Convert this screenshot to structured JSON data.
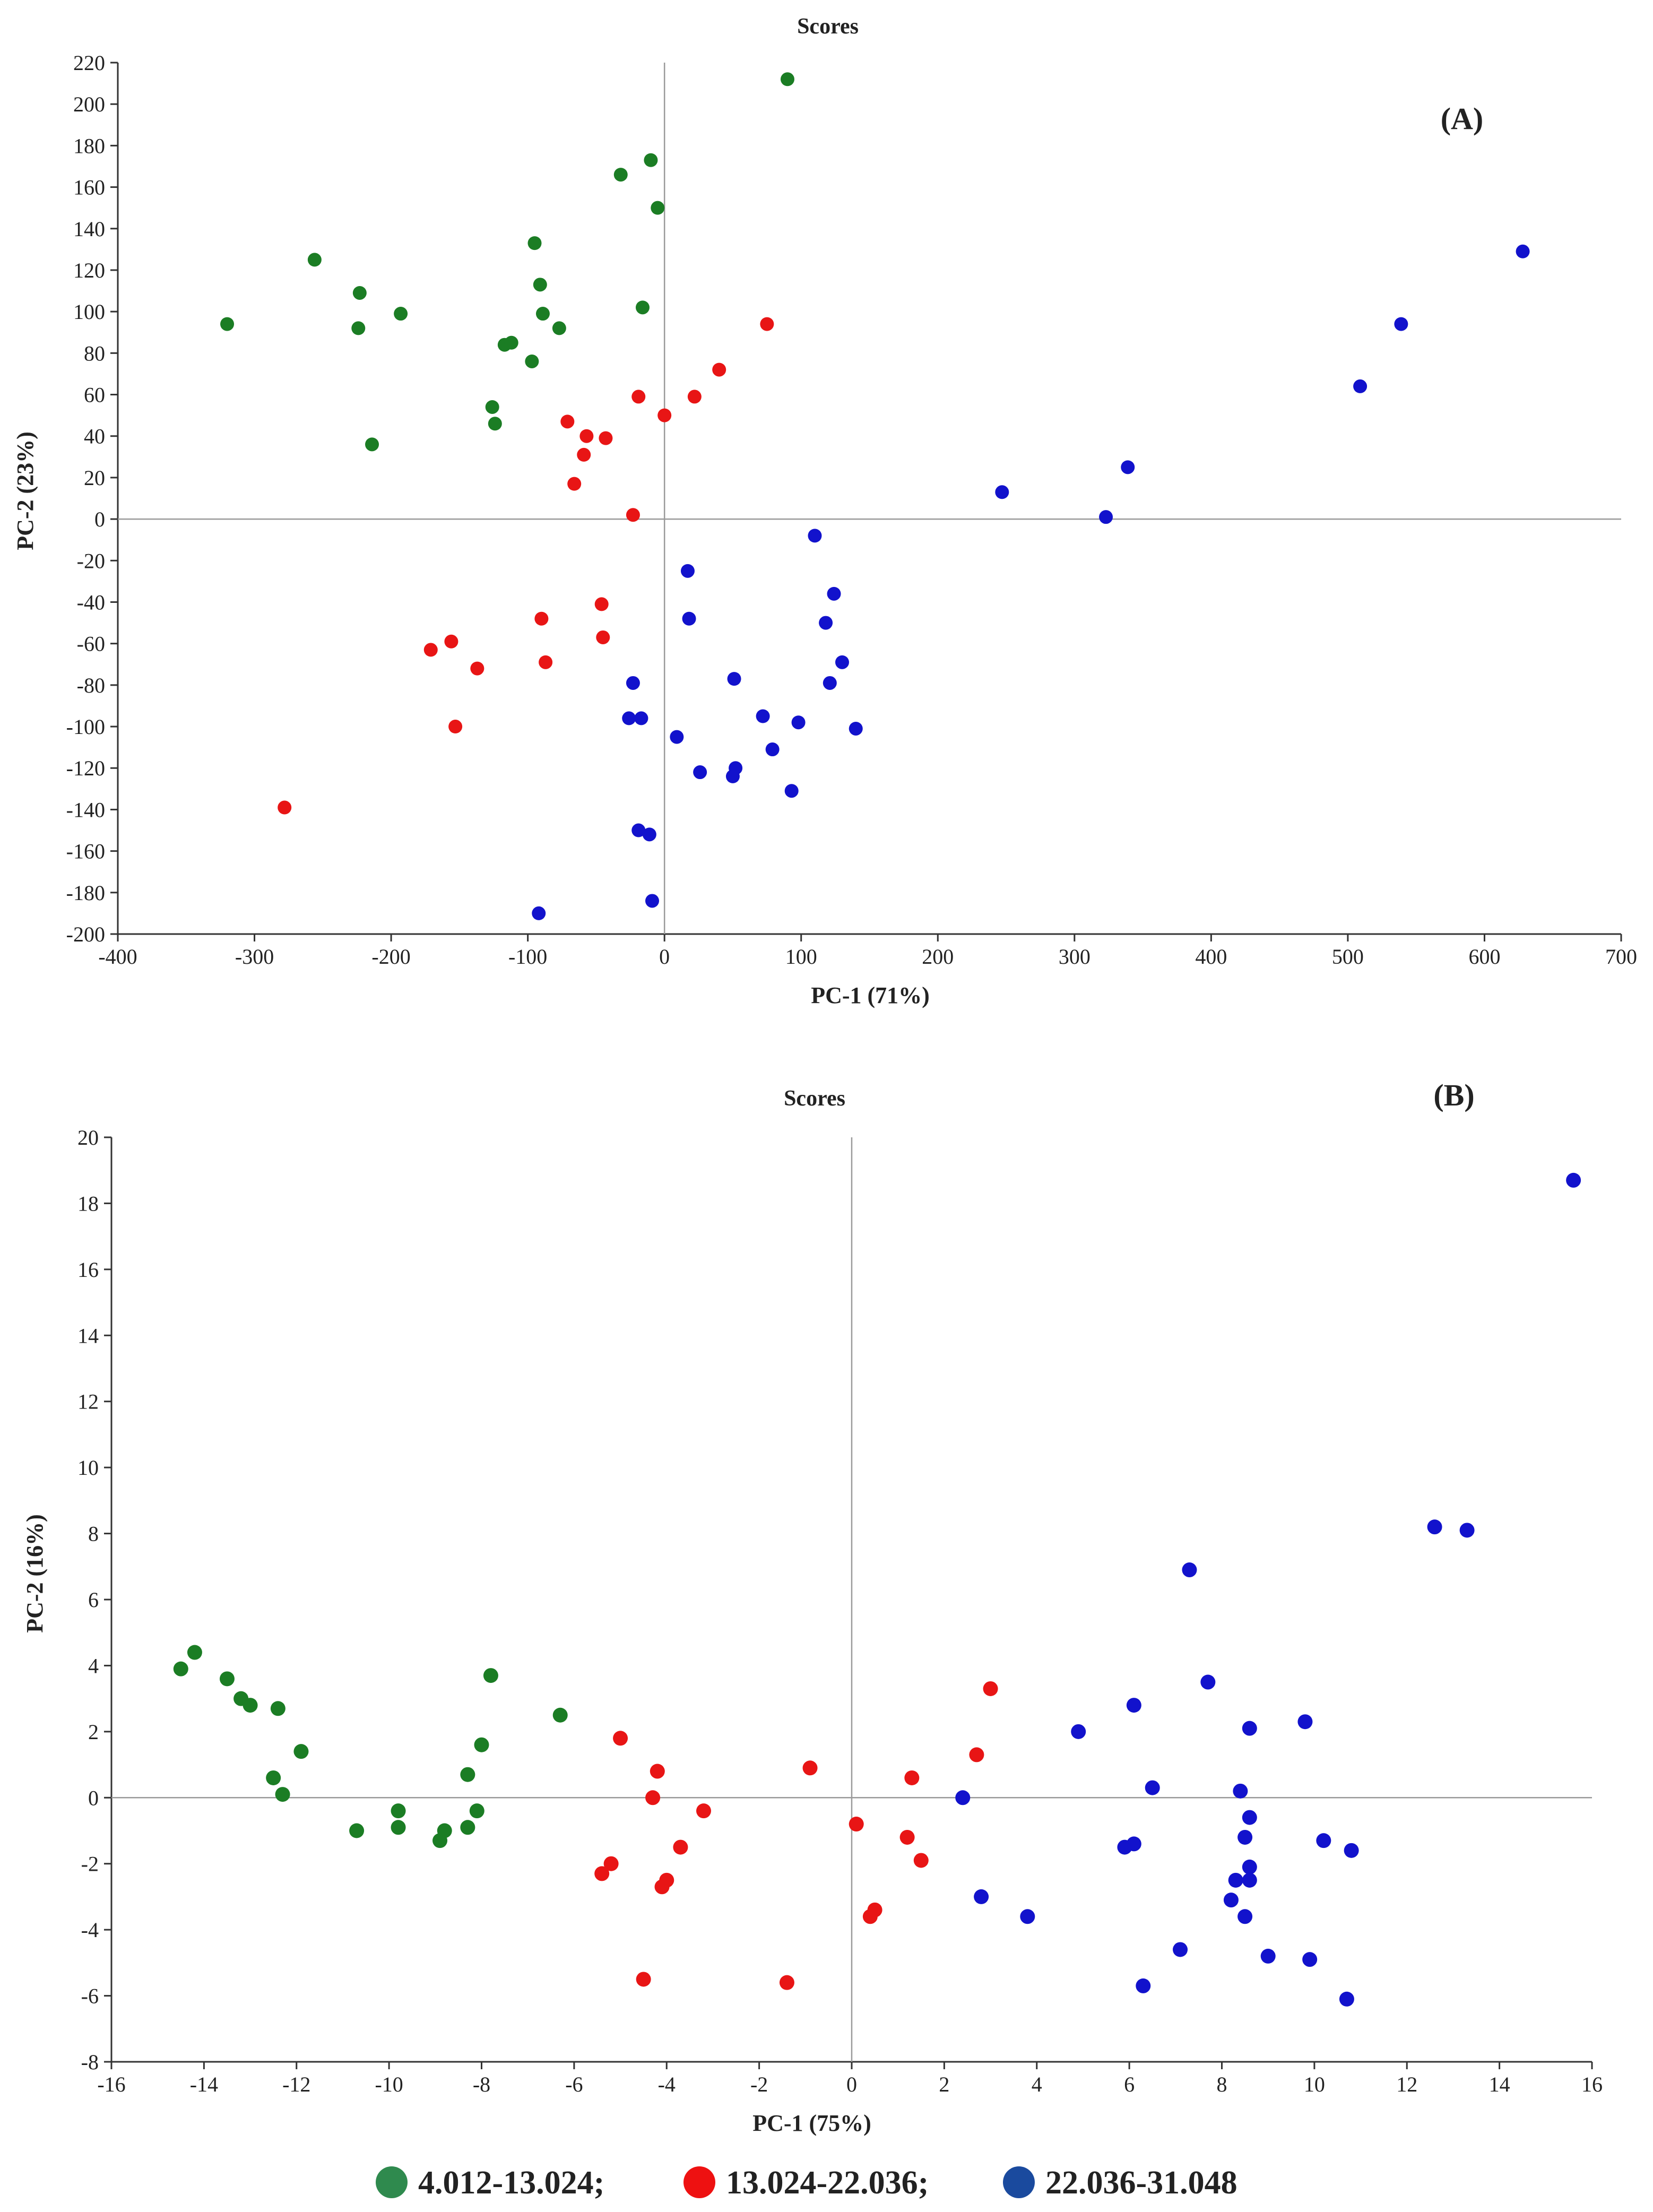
{
  "colors": {
    "group1": "#1b7d24",
    "group2": "#e81515",
    "group3": "#1212cc",
    "legend_group1": "#2f8a4e",
    "legend_group2": "#ee1111",
    "legend_group3": "#1a4a9e"
  },
  "legend": [
    {
      "label": "4.012-13.024;",
      "color_key": "legend_group1"
    },
    {
      "label": "13.024-22.036;",
      "color_key": "legend_group2"
    },
    {
      "label": "22.036-31.048",
      "color_key": "legend_group3"
    }
  ],
  "chart_data": [
    {
      "type": "scatter",
      "panel_label": "(A)",
      "title": "Scores",
      "xlabel": "PC-1 (71%)",
      "ylabel": "PC-2 (23%)",
      "xlim": [
        -400,
        700
      ],
      "ylim": [
        -200,
        220
      ],
      "xticks": [
        -400,
        -300,
        -200,
        -100,
        0,
        100,
        200,
        300,
        400,
        500,
        600,
        700
      ],
      "yticks": [
        -200,
        -180,
        -160,
        -140,
        -120,
        -100,
        -80,
        -60,
        -40,
        -20,
        0,
        20,
        40,
        60,
        80,
        100,
        120,
        140,
        160,
        180,
        200,
        220
      ],
      "series": [
        {
          "name": "4.012-13.024",
          "color_key": "group1",
          "points": [
            [
              90,
              212
            ],
            [
              -10,
              173
            ],
            [
              -32,
              166
            ],
            [
              -5,
              150
            ],
            [
              -95,
              133
            ],
            [
              -256,
              125
            ],
            [
              -223,
              109
            ],
            [
              -193,
              99
            ],
            [
              -91,
              113
            ],
            [
              -89,
              99
            ],
            [
              -320,
              94
            ],
            [
              -224,
              92
            ],
            [
              -77,
              92
            ],
            [
              -16,
              102
            ],
            [
              -117,
              84
            ],
            [
              -112,
              85
            ],
            [
              -97,
              76
            ],
            [
              -126,
              54
            ],
            [
              -124,
              46
            ],
            [
              -214,
              36
            ]
          ]
        },
        {
          "name": "13.024-22.036",
          "color_key": "group2",
          "points": [
            [
              75,
              94
            ],
            [
              40,
              72
            ],
            [
              22,
              59
            ],
            [
              -19,
              59
            ],
            [
              0,
              50
            ],
            [
              -71,
              47
            ],
            [
              -57,
              40
            ],
            [
              -43,
              39
            ],
            [
              -59,
              31
            ],
            [
              -66,
              17
            ],
            [
              -23,
              2
            ],
            [
              -46,
              -41
            ],
            [
              -90,
              -48
            ],
            [
              -156,
              -59
            ],
            [
              -171,
              -63
            ],
            [
              -45,
              -57
            ],
            [
              -87,
              -69
            ],
            [
              -137,
              -72
            ],
            [
              -153,
              -100
            ],
            [
              -278,
              -139
            ]
          ]
        },
        {
          "name": "22.036-31.048",
          "color_key": "group3",
          "points": [
            [
              628,
              129
            ],
            [
              539,
              94
            ],
            [
              509,
              64
            ],
            [
              339,
              25
            ],
            [
              247,
              13
            ],
            [
              323,
              1
            ],
            [
              110,
              -8
            ],
            [
              17,
              -25
            ],
            [
              124,
              -36
            ],
            [
              118,
              -50
            ],
            [
              18,
              -48
            ],
            [
              130,
              -69
            ],
            [
              121,
              -79
            ],
            [
              -23,
              -79
            ],
            [
              51,
              -77
            ],
            [
              72,
              -95
            ],
            [
              -26,
              -96
            ],
            [
              -17,
              -96
            ],
            [
              98,
              -98
            ],
            [
              140,
              -101
            ],
            [
              9,
              -105
            ],
            [
              79,
              -111
            ],
            [
              52,
              -120
            ],
            [
              26,
              -122
            ],
            [
              50,
              -124
            ],
            [
              93,
              -131
            ],
            [
              -19,
              -150
            ],
            [
              -11,
              -152
            ],
            [
              -9,
              -184
            ],
            [
              -92,
              -190
            ]
          ]
        }
      ]
    },
    {
      "type": "scatter",
      "panel_label": "(B)",
      "title": "Scores",
      "xlabel": "PC-1 (75%)",
      "ylabel": "PC-2 (16%)",
      "xlim": [
        -16,
        16
      ],
      "ylim": [
        -8,
        20
      ],
      "xticks": [
        -16,
        -14,
        -12,
        -10,
        -8,
        -6,
        -4,
        -2,
        0,
        2,
        4,
        6,
        8,
        10,
        12,
        14,
        16
      ],
      "yticks": [
        -8,
        -6,
        -4,
        -2,
        0,
        2,
        4,
        6,
        8,
        10,
        12,
        14,
        16,
        18,
        20
      ],
      "series": [
        {
          "name": "4.012-13.024",
          "color_key": "group1",
          "points": [
            [
              -14.2,
              4.4
            ],
            [
              -14.5,
              3.9
            ],
            [
              -13.5,
              3.6
            ],
            [
              -13.2,
              3.0
            ],
            [
              -13.0,
              2.8
            ],
            [
              -12.4,
              2.7
            ],
            [
              -11.9,
              1.4
            ],
            [
              -12.5,
              0.6
            ],
            [
              -12.3,
              0.1
            ],
            [
              -10.7,
              -1.0
            ],
            [
              -9.8,
              -0.4
            ],
            [
              -9.8,
              -0.9
            ],
            [
              -8.8,
              -1.0
            ],
            [
              -8.9,
              -1.3
            ],
            [
              -8.3,
              -0.9
            ],
            [
              -8.1,
              -0.4
            ],
            [
              -8.3,
              0.7
            ],
            [
              -8.0,
              1.6
            ],
            [
              -7.8,
              3.7
            ],
            [
              -6.3,
              2.5
            ]
          ]
        },
        {
          "name": "13.024-22.036",
          "color_key": "group2",
          "points": [
            [
              3.0,
              3.3
            ],
            [
              2.7,
              1.3
            ],
            [
              1.3,
              0.6
            ],
            [
              -0.9,
              0.9
            ],
            [
              0.1,
              -0.8
            ],
            [
              1.2,
              -1.2
            ],
            [
              1.5,
              -1.9
            ],
            [
              0.5,
              -3.4
            ],
            [
              0.4,
              -3.6
            ],
            [
              -5.0,
              1.8
            ],
            [
              -4.2,
              0.8
            ],
            [
              -4.3,
              0.0
            ],
            [
              -3.2,
              -0.4
            ],
            [
              -3.7,
              -1.5
            ],
            [
              -5.2,
              -2.0
            ],
            [
              -5.4,
              -2.3
            ],
            [
              -4.0,
              -2.5
            ],
            [
              -4.1,
              -2.7
            ],
            [
              -4.5,
              -5.5
            ],
            [
              -1.4,
              -5.6
            ]
          ]
        },
        {
          "name": "22.036-31.048",
          "color_key": "group3",
          "points": [
            [
              15.6,
              18.7
            ],
            [
              12.6,
              8.2
            ],
            [
              13.3,
              8.1
            ],
            [
              7.3,
              6.9
            ],
            [
              7.7,
              3.5
            ],
            [
              6.1,
              2.8
            ],
            [
              4.9,
              2.0
            ],
            [
              8.6,
              2.1
            ],
            [
              9.8,
              2.3
            ],
            [
              6.5,
              0.3
            ],
            [
              8.4,
              0.2
            ],
            [
              2.4,
              0.0
            ],
            [
              8.6,
              -0.6
            ],
            [
              8.5,
              -1.2
            ],
            [
              10.2,
              -1.3
            ],
            [
              6.1,
              -1.4
            ],
            [
              5.9,
              -1.5
            ],
            [
              10.8,
              -1.6
            ],
            [
              8.6,
              -2.1
            ],
            [
              8.3,
              -2.5
            ],
            [
              8.6,
              -2.5
            ],
            [
              8.2,
              -3.1
            ],
            [
              2.8,
              -3.0
            ],
            [
              3.8,
              -3.6
            ],
            [
              8.5,
              -3.6
            ],
            [
              7.1,
              -4.6
            ],
            [
              9.0,
              -4.8
            ],
            [
              9.9,
              -4.9
            ],
            [
              6.3,
              -5.7
            ],
            [
              10.7,
              -6.1
            ]
          ]
        }
      ]
    }
  ]
}
